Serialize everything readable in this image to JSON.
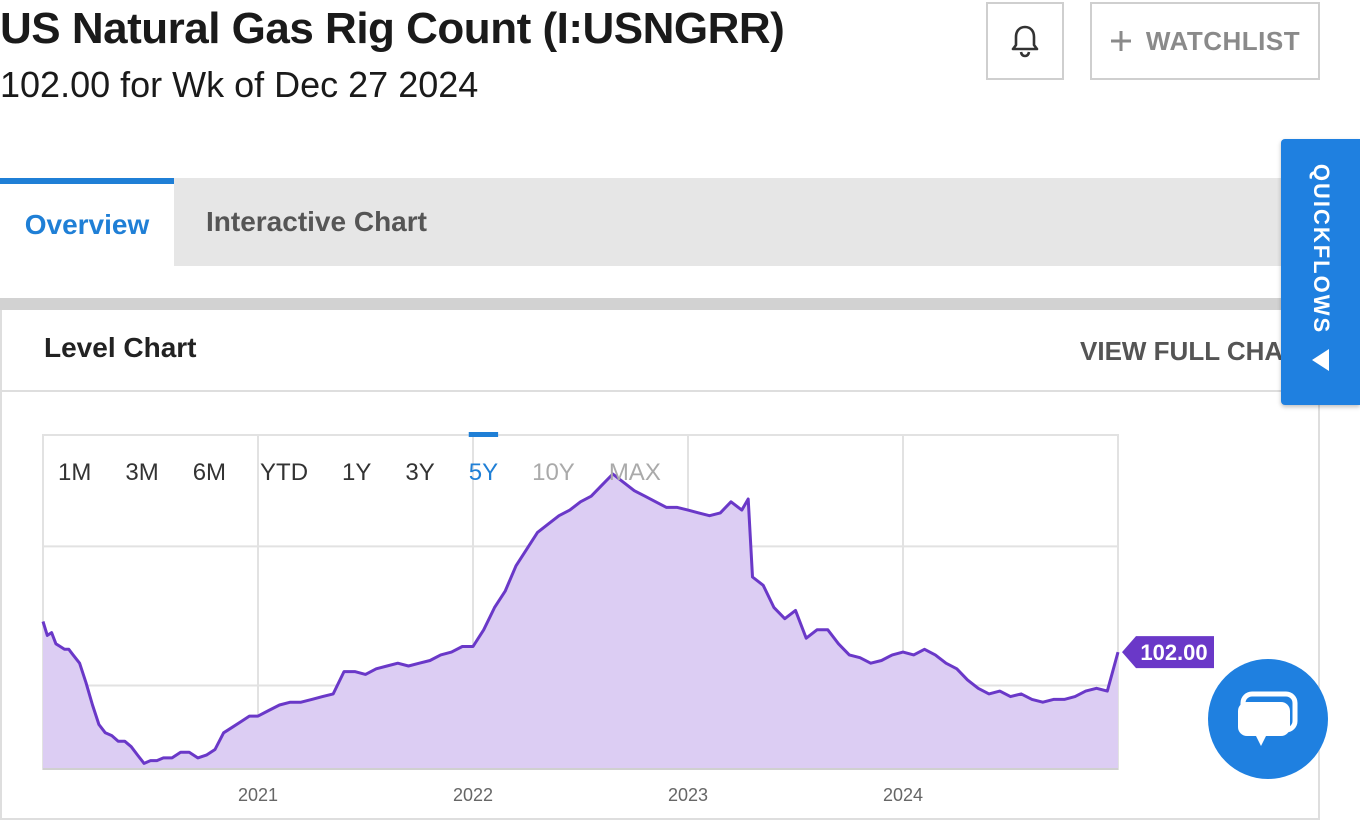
{
  "header": {
    "title": "US Natural Gas Rig Count (I:USNGRR)",
    "subtitle": "102.00 for Wk of Dec 27 2024",
    "watchlist_label": "WATCHLIST",
    "bell_icon": "bell-icon",
    "plus_icon": "plus-icon"
  },
  "tabs": [
    {
      "label": "Overview",
      "active": true
    },
    {
      "label": "Interactive Chart",
      "active": false
    }
  ],
  "panel": {
    "title": "Level Chart",
    "view_full": "VIEW FULL CHART"
  },
  "quickflows": {
    "label": "QUICKFLOWS",
    "arrow_icon": "triangle-left-icon"
  },
  "chat": {
    "icon": "chat-bubble-icon"
  },
  "ranges": [
    {
      "label": "1M",
      "state": "normal"
    },
    {
      "label": "3M",
      "state": "normal"
    },
    {
      "label": "6M",
      "state": "normal"
    },
    {
      "label": "YTD",
      "state": "normal"
    },
    {
      "label": "1Y",
      "state": "normal"
    },
    {
      "label": "3Y",
      "state": "normal"
    },
    {
      "label": "5Y",
      "state": "active"
    },
    {
      "label": "10Y",
      "state": "disabled"
    },
    {
      "label": "MAX",
      "state": "disabled"
    }
  ],
  "colors": {
    "accent": "#1f7fd6",
    "line": "#6a38c8",
    "fill": "#dccdf3",
    "badge": "#6a38c8"
  },
  "chart_data": {
    "type": "area",
    "x_tick_labels": [
      "2021",
      "2022",
      "2023",
      "2024"
    ],
    "x_ticks": [
      2021.0,
      2022.0,
      2023.0,
      2024.0
    ],
    "xlim": [
      2020.0,
      2025.0
    ],
    "ylim": [
      60,
      180
    ],
    "y_gridlines": [
      90,
      140
    ],
    "grid": true,
    "last_value_label": "102.00",
    "last_value": 102,
    "series": [
      {
        "x": [
          2020.0,
          2020.02,
          2020.04,
          2020.06,
          2020.08,
          2020.1,
          2020.12,
          2020.14,
          2020.17,
          2020.2,
          2020.23,
          2020.26,
          2020.29,
          2020.32,
          2020.35,
          2020.38,
          2020.41,
          2020.44,
          2020.47,
          2020.5,
          2020.53,
          2020.56,
          2020.6,
          2020.64,
          2020.68,
          2020.72,
          2020.76,
          2020.8,
          2020.84,
          2020.88,
          2020.92,
          2020.96,
          2021.0,
          2021.05,
          2021.1,
          2021.15,
          2021.2,
          2021.25,
          2021.3,
          2021.35,
          2021.4,
          2021.45,
          2021.5,
          2021.55,
          2021.6,
          2021.65,
          2021.7,
          2021.75,
          2021.8,
          2021.85,
          2021.9,
          2021.95,
          2022.0,
          2022.05,
          2022.1,
          2022.15,
          2022.2,
          2022.25,
          2022.3,
          2022.35,
          2022.4,
          2022.45,
          2022.5,
          2022.55,
          2022.6,
          2022.65,
          2022.7,
          2022.75,
          2022.8,
          2022.85,
          2022.9,
          2022.95,
          2023.0,
          2023.05,
          2023.1,
          2023.15,
          2023.2,
          2023.25,
          2023.28,
          2023.3,
          2023.35,
          2023.4,
          2023.45,
          2023.5,
          2023.55,
          2023.6,
          2023.65,
          2023.7,
          2023.75,
          2023.8,
          2023.85,
          2023.9,
          2023.95,
          2024.0,
          2024.05,
          2024.1,
          2024.15,
          2024.2,
          2024.25,
          2024.3,
          2024.35,
          2024.4,
          2024.45,
          2024.5,
          2024.55,
          2024.6,
          2024.65,
          2024.7,
          2024.75,
          2024.8,
          2024.85,
          2024.9,
          2024.95,
          2025.0
        ],
        "y": [
          113,
          108,
          109,
          105,
          104,
          103,
          103,
          101,
          98,
          91,
          83,
          76,
          73,
          72,
          70,
          70,
          68,
          65,
          62,
          63,
          63,
          64,
          64,
          66,
          66,
          64,
          65,
          67,
          73,
          75,
          77,
          79,
          79,
          81,
          83,
          84,
          84,
          85,
          86,
          87,
          95,
          95,
          94,
          96,
          97,
          98,
          97,
          98,
          99,
          101,
          102,
          104,
          104,
          110,
          118,
          124,
          133,
          139,
          145,
          148,
          151,
          153,
          156,
          158,
          162,
          166,
          163,
          160,
          158,
          156,
          154,
          154,
          153,
          152,
          151,
          152,
          156,
          153,
          157,
          129,
          126,
          118,
          114,
          117,
          107,
          110,
          110,
          105,
          101,
          100,
          98,
          99,
          101,
          102,
          101,
          103,
          101,
          98,
          96,
          92,
          89,
          87,
          88,
          86,
          87,
          85,
          84,
          85,
          85,
          86,
          88,
          89,
          88,
          102
        ]
      }
    ]
  }
}
